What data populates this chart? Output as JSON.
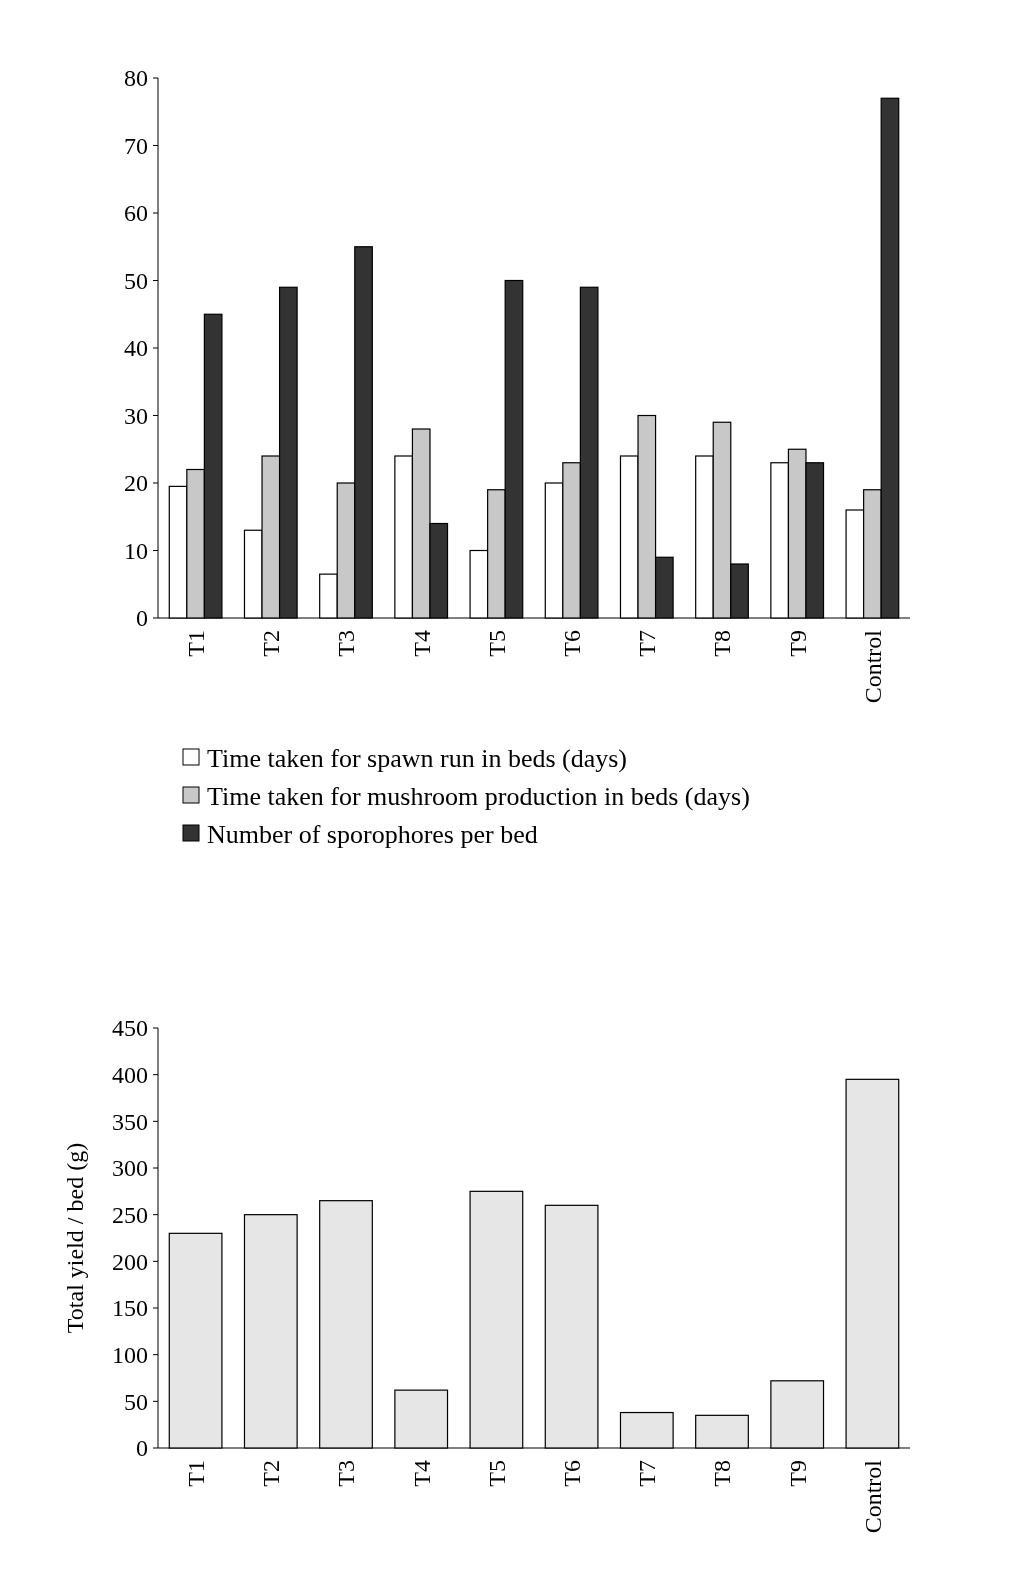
{
  "chart_data": [
    {
      "type": "bar",
      "categories": [
        "T1",
        "T2",
        "T3",
        "T4",
        "T5",
        "T6",
        "T7",
        "T8",
        "T9",
        "Control"
      ],
      "series": [
        {
          "name": "Time taken for spawn run in beds (days)",
          "color": "#ffffff",
          "values": [
            19.5,
            13,
            6.5,
            24,
            10,
            20,
            24,
            24,
            23,
            16
          ]
        },
        {
          "name": "Time taken for mushroom production in beds (days)",
          "color": "#c8c8c8",
          "values": [
            22,
            24,
            20,
            28,
            19,
            23,
            30,
            29,
            25,
            19
          ]
        },
        {
          "name": "Number of sporophores per bed",
          "color": "#333333",
          "values": [
            45,
            49,
            55,
            14,
            50,
            49,
            9,
            8,
            23,
            77
          ]
        }
      ],
      "ylim": [
        0,
        80
      ],
      "yticks": [
        0,
        10,
        20,
        30,
        40,
        50,
        60,
        70,
        80
      ],
      "legend": "bottom"
    },
    {
      "type": "bar",
      "categories": [
        "T1",
        "T2",
        "T3",
        "T4",
        "T5",
        "T6",
        "T7",
        "T8",
        "T9",
        "Control"
      ],
      "color": "#e6e6e6",
      "values": [
        230,
        250,
        265,
        62,
        275,
        260,
        38,
        35,
        72,
        395
      ],
      "ylabel": "Total yield / bed (g)",
      "ylim": [
        0,
        450
      ],
      "yticks": [
        0,
        50,
        100,
        150,
        200,
        250,
        300,
        350,
        400,
        450
      ]
    }
  ]
}
